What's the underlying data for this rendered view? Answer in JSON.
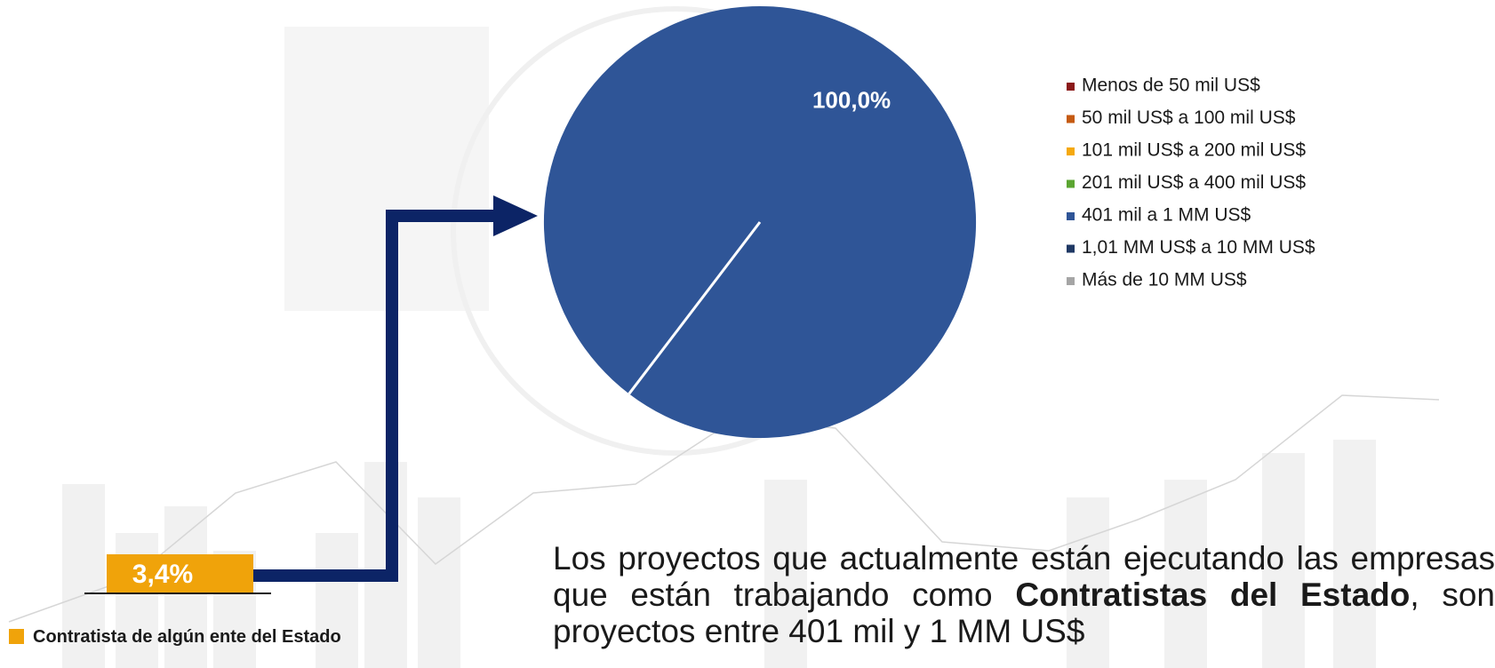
{
  "chart_data": {
    "type": "pie",
    "categories": [
      "Menos de 50 mil US$",
      "50 mil US$ a 100 mil US$",
      "101 mil US$ a 200 mil US$",
      "201 mil US$ a 400 mil US$",
      "401 mil a 1 MM US$",
      "1,01 MM US$ a 10 MM US$",
      "Más de 10 MM US$"
    ],
    "values": [
      0,
      0,
      0,
      0,
      100,
      0,
      0
    ],
    "value_labels": [
      null,
      null,
      null,
      null,
      "100,0%",
      null,
      null
    ],
    "colors": [
      "#8b1a1a",
      "#c55a11",
      "#f5a90f",
      "#5ba531",
      "#2f5597",
      "#1f3864",
      "#a5a5a5"
    ],
    "legend": "right"
  },
  "callout": {
    "value_label": "3,4%",
    "caption": "Contratista de algún ente del Estado"
  },
  "paragraph": {
    "parts": [
      "Los proyectos que actualmente están ejecutando las empresas que están trabajando como ",
      "Contratistas del Estado",
      ", son proyectos entre 401 mil y 1 MM US$"
    ]
  }
}
